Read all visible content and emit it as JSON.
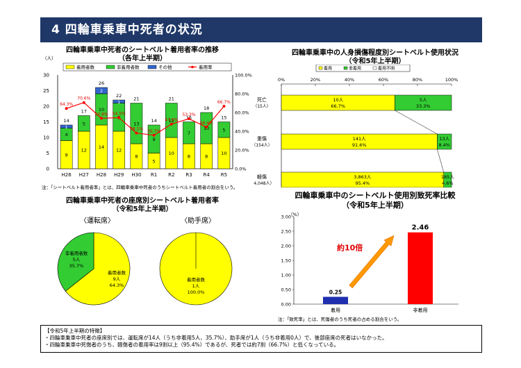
{
  "header": {
    "title": "4 四輪車乗車中死者の状況"
  },
  "charts": {
    "trend": {
      "title": "四輪車乗車中死者のシートベルト着用者率の推移",
      "subtitle": "（各年上半期）",
      "unit": "（人）",
      "legend": [
        "着用者数",
        "非着用者数",
        "その他",
        "着用率"
      ],
      "note": "注：「シートベルト着用者率」とは、四輪車乗車中死者のうちシートベルト着用者の割合をいう。"
    },
    "injury": {
      "title": "四輪車乗車中の人身損傷程度別シートベルト使用状況",
      "subtitle": "（令和5年上半期）",
      "legend": [
        "着用",
        "非着用",
        "着用不明"
      ]
    },
    "seat": {
      "title": "四輪車乗車中死者の座席別シートベルト着用者率",
      "subtitle": "（令和5年上半期）",
      "driver_label": "〈運転席〉",
      "passenger_label": "〈助手席〉"
    },
    "fatality": {
      "title": "四輪車乗車中のシートベルト使用別致死率比較",
      "subtitle": "（令和5年上半期）",
      "unit": "（%）",
      "annotation": "約10倍",
      "note": "注：「致死率」とは、死傷者のうち死者の占める割合をいう。"
    }
  },
  "chart_data": [
    {
      "type": "bar",
      "stacked": true,
      "categories": [
        "H26",
        "H27",
        "H28",
        "H29",
        "H30",
        "R1",
        "R2",
        "R3",
        "R4",
        "R5"
      ],
      "series": [
        {
          "name": "着用者数",
          "values": [
            9,
            12,
            14,
            12,
            8,
            5,
            10,
            8,
            8,
            10
          ],
          "color": "#ffff00"
        },
        {
          "name": "非着用者数",
          "values": [
            4,
            5,
            10,
            9,
            13,
            9,
            11,
            7,
            10,
            5
          ],
          "color": "#33cc33"
        },
        {
          "name": "その他",
          "values": [
            1,
            0,
            2,
            1,
            0,
            0,
            0,
            0,
            0,
            0
          ],
          "color": "#3366cc"
        }
      ],
      "totals": [
        14,
        17,
        26,
        22,
        21,
        14,
        21,
        15,
        18,
        15
      ],
      "line": {
        "name": "着用率",
        "values": [
          64.3,
          70.6,
          53.8,
          54.5,
          38.1,
          35.7,
          47.6,
          53.3,
          44.4,
          66.7
        ],
        "labels": [
          "64.3%",
          "70.6%",
          "53.8%",
          "54.5%",
          "38.1%",
          "35.7%",
          "47.6%",
          "53.3%",
          "44.4%",
          "66.7%"
        ],
        "color": "#ff0000"
      },
      "ylim": [
        0,
        30
      ],
      "yticks": [
        "0",
        "5",
        "10",
        "15",
        "20",
        "25",
        "30"
      ],
      "y2lim": [
        0,
        100
      ],
      "y2ticks": [
        "0.0%",
        "20.0%",
        "40.0%",
        "60.0%",
        "80.0%",
        "100.0%"
      ]
    },
    {
      "type": "bar",
      "horizontal": true,
      "stacked_percent": true,
      "categories": [
        {
          "name": "死亡",
          "count": "（15人）"
        },
        {
          "name": "重傷",
          "count": "（154人）"
        },
        {
          "name": "軽傷",
          "count": "（4,048人）"
        }
      ],
      "series": [
        {
          "name": "着用",
          "values": [
            66.7,
            91.6,
            95.4
          ],
          "labels": [
            [
              "10人",
              "66.7%"
            ],
            [
              "141人",
              "91.6%"
            ],
            [
              "3,863人",
              "95.4%"
            ]
          ],
          "color": "#ffff00"
        },
        {
          "name": "非着用",
          "values": [
            33.3,
            8.4,
            4.6
          ],
          "labels": [
            [
              "5人",
              "33.3%"
            ],
            [
              "13人",
              "8.4%"
            ],
            [
              "185人",
              "4.6%"
            ]
          ],
          "color": "#33cc33"
        }
      ],
      "xticks": [
        "0%",
        "20%",
        "40%",
        "60%",
        "80%",
        "100%"
      ]
    },
    {
      "type": "pie",
      "name": "運転席",
      "slices": [
        {
          "label": [
            "着用者数",
            "9人",
            "64.3%"
          ],
          "value": 64.3,
          "color": "#ffff00"
        },
        {
          "label": [
            "非着用者数",
            "5人",
            "35.7%"
          ],
          "value": 35.7,
          "color": "#33cc33"
        }
      ]
    },
    {
      "type": "pie",
      "name": "助手席",
      "slices": [
        {
          "label": [
            "着用者数",
            "1人",
            "100.0%"
          ],
          "value": 100.0,
          "color": "#ffff00"
        }
      ]
    },
    {
      "type": "bar",
      "categories": [
        "着用",
        "非着用"
      ],
      "values": [
        0.25,
        2.46
      ],
      "value_labels": [
        "0.25",
        "2.46"
      ],
      "colors": [
        "#1f2fb0",
        "#ff0000"
      ],
      "ylim": [
        0,
        3
      ],
      "yticks": [
        "0.00",
        "0.50",
        "1.00",
        "1.50",
        "2.00",
        "2.50",
        "3.00"
      ]
    }
  ],
  "features": {
    "title": "【令和5年上半期の特徴】",
    "lines": [
      "・四輪車乗車中死者の座席別では、運転席が14人（うち非着用5人、35.7%）、助手席が1人（うち非着用0人）で、後部座席の死者はいなかった。",
      "・四輪車乗車中死傷者のうち、軽傷者の着用率は9割以上（95.4%）であるが、死者では約7割（66.7%）と低くなっている。"
    ]
  }
}
